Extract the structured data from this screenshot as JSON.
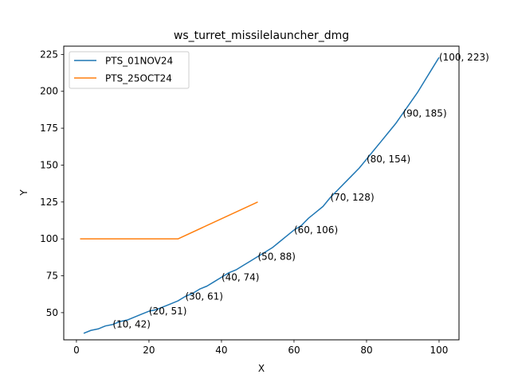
{
  "chart_data": {
    "type": "line",
    "title": "ws_turret_missilelauncher_dmg",
    "xlabel": "X",
    "ylabel": "Y",
    "xlim": [
      -3.5,
      105.5
    ],
    "ylim": [
      31.6,
      230.6
    ],
    "xticks": [
      0,
      20,
      40,
      60,
      80,
      100
    ],
    "yticks": [
      50,
      75,
      100,
      125,
      150,
      175,
      200,
      225
    ],
    "grid": false,
    "legend_position": "top-left",
    "series": [
      {
        "name": "PTS_01NOV24",
        "color": "#1f77b4",
        "x": [
          2,
          4,
          6,
          8,
          10,
          12,
          14,
          16,
          18,
          20,
          22,
          24,
          26,
          28,
          30,
          32,
          34,
          36,
          38,
          40,
          42,
          44,
          46,
          48,
          50,
          52,
          54,
          56,
          58,
          60,
          62,
          64,
          66,
          68,
          70,
          72,
          74,
          76,
          78,
          80,
          82,
          84,
          86,
          88,
          90,
          92,
          94,
          96,
          98,
          100
        ],
        "y": [
          36,
          38,
          39,
          41,
          42,
          44,
          45,
          47,
          49,
          51,
          52,
          54,
          56,
          58,
          61,
          63,
          66,
          68,
          71,
          74,
          77,
          79,
          82,
          85,
          88,
          91,
          94,
          98,
          102,
          106,
          109,
          114,
          118,
          122,
          128,
          133,
          138,
          143,
          148,
          154,
          160,
          166,
          172,
          178,
          185,
          192,
          199,
          207,
          215,
          223
        ]
      },
      {
        "name": "PTS_25OCT24",
        "color": "#ff7f0e",
        "x": [
          1,
          28,
          50
        ],
        "y": [
          100,
          100,
          125
        ]
      }
    ],
    "annotations": [
      {
        "x": 10,
        "y": 42,
        "text": "(10, 42)"
      },
      {
        "x": 20,
        "y": 51,
        "text": "(20, 51)"
      },
      {
        "x": 30,
        "y": 61,
        "text": "(30, 61)"
      },
      {
        "x": 40,
        "y": 74,
        "text": "(40, 74)"
      },
      {
        "x": 50,
        "y": 88,
        "text": "(50, 88)"
      },
      {
        "x": 60,
        "y": 106,
        "text": "(60, 106)"
      },
      {
        "x": 70,
        "y": 128,
        "text": "(70, 128)"
      },
      {
        "x": 80,
        "y": 154,
        "text": "(80, 154)"
      },
      {
        "x": 90,
        "y": 185,
        "text": "(90, 185)"
      },
      {
        "x": 100,
        "y": 223,
        "text": "(100, 223)"
      }
    ]
  }
}
